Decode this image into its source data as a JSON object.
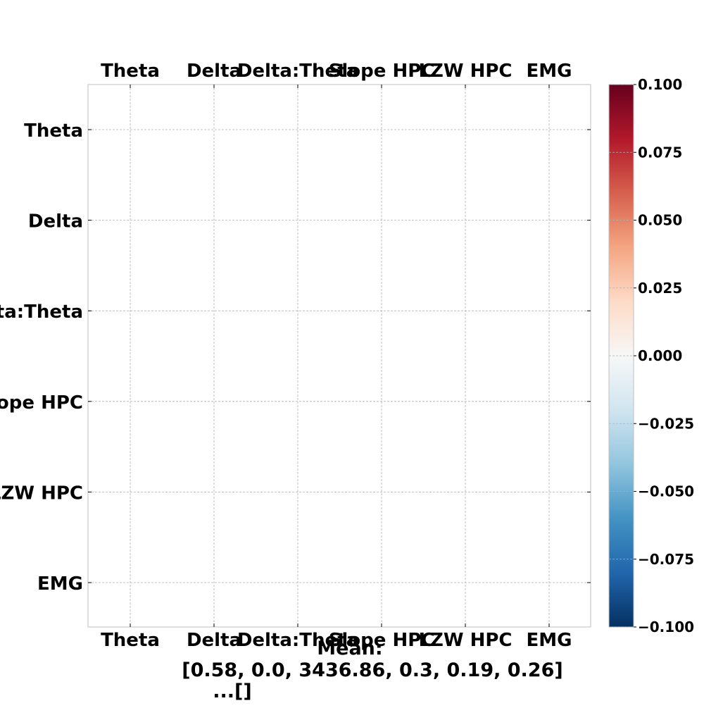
{
  "chart_data": {
    "type": "heatmap",
    "title": "",
    "x_categories": [
      "Theta",
      "Delta",
      "Delta:Theta",
      "Slope HPC",
      "LZW HPC",
      "EMG"
    ],
    "y_categories": [
      "Theta",
      "Delta",
      "Delta:Theta",
      "Slope HPC",
      "LZW HPC",
      "EMG"
    ],
    "values": [
      [
        null,
        null,
        null,
        null,
        null,
        null
      ],
      [
        null,
        null,
        null,
        null,
        null,
        null
      ],
      [
        null,
        null,
        null,
        null,
        null,
        null
      ],
      [
        null,
        null,
        null,
        null,
        null,
        null
      ],
      [
        null,
        null,
        null,
        null,
        null,
        null
      ],
      [
        null,
        null,
        null,
        null,
        null,
        null
      ]
    ],
    "colorbar": {
      "colormap": "RdBu_r",
      "vmin": -0.1,
      "vmax": 0.1,
      "ticks": [
        0.1,
        0.075,
        0.05,
        0.025,
        0.0,
        -0.025,
        -0.05,
        -0.075,
        -0.1
      ],
      "tick_labels": [
        "0.100",
        "0.075",
        "0.050",
        "0.025",
        "0.000",
        "−0.025",
        "−0.050",
        "−0.075",
        "−0.100"
      ]
    },
    "grid": true,
    "caption_lines": [
      "Mean:",
      "[0.58, 0.0, 3436.86, 0.3, 0.19, 0.26]",
      "...[]"
    ],
    "colors": {
      "grid": "#b0b0b0",
      "frame": "#bfbfbf",
      "text": "#000000",
      "colormap_stops": [
        "#053061",
        "#2166ac",
        "#4393c3",
        "#92c5de",
        "#d1e5f0",
        "#f7f7f7",
        "#fddbc7",
        "#f4a582",
        "#d6604d",
        "#b2182b",
        "#67001f"
      ]
    }
  }
}
